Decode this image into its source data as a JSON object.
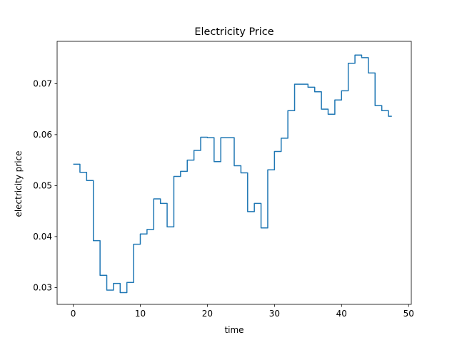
{
  "chart_data": {
    "type": "line",
    "title": "Electricity Price",
    "xlabel": "time",
    "ylabel": "electricity price",
    "xlim": [
      -2.4,
      50.4
    ],
    "ylim": [
      0.0267,
      0.0783
    ],
    "x_ticks": [
      0,
      10,
      20,
      30,
      40,
      50
    ],
    "x_tick_labels": [
      "0",
      "10",
      "20",
      "30",
      "40",
      "50"
    ],
    "y_ticks": [
      0.03,
      0.04,
      0.05,
      0.06,
      0.07
    ],
    "y_tick_labels": [
      "0.03",
      "0.04",
      "0.05",
      "0.06",
      "0.07"
    ],
    "grid": false,
    "step": "post",
    "series": [
      {
        "color": "#1f77b4",
        "x": [
          0,
          0.5,
          1,
          1.5,
          2,
          2.5,
          3,
          3.5,
          4,
          4.5,
          5,
          5.5,
          6,
          6.5,
          7,
          7.5,
          8,
          8.5,
          9,
          9.5,
          10,
          10.5,
          11,
          11.5,
          12,
          12.5,
          13,
          13.5,
          14,
          14.5,
          15,
          15.5,
          16,
          16.5,
          17,
          17.5,
          18,
          18.5,
          19,
          19.5,
          20,
          20.5,
          21,
          21.5,
          22,
          22.5,
          23,
          23.5,
          24,
          24.5,
          25,
          25.5,
          26,
          26.5,
          27,
          27.5,
          28,
          28.5,
          29,
          29.5,
          30,
          30.5,
          31,
          31.5,
          32,
          32.5,
          33,
          33.5,
          34,
          34.5,
          35,
          35.5,
          36,
          36.5,
          37,
          37.5,
          38,
          38.5,
          39,
          39.5,
          40,
          40.5,
          41,
          41.5,
          42,
          42.5,
          43,
          43.5,
          44,
          44.5,
          45,
          45.5,
          46,
          46.5,
          47,
          47.5
        ],
        "y": [
          0.0542,
          0.0542,
          0.0526,
          0.0526,
          0.051,
          0.051,
          0.0392,
          0.0392,
          0.0324,
          0.0324,
          0.0295,
          0.0295,
          0.0308,
          0.0308,
          0.029,
          0.029,
          0.031,
          0.031,
          0.0385,
          0.0385,
          0.0405,
          0.0405,
          0.0414,
          0.0414,
          0.0474,
          0.0474,
          0.0465,
          0.0465,
          0.0419,
          0.0419,
          0.0518,
          0.0518,
          0.0528,
          0.0528,
          0.055,
          0.055,
          0.0569,
          0.0569,
          0.0595,
          0.0595,
          0.0594,
          0.0594,
          0.0547,
          0.0547,
          0.0594,
          0.0594,
          0.0594,
          0.0594,
          0.0539,
          0.0539,
          0.0525,
          0.0525,
          0.0449,
          0.0449,
          0.0465,
          0.0465,
          0.0417,
          0.0417,
          0.0531,
          0.0531,
          0.0567,
          0.0567,
          0.0593,
          0.0593,
          0.0647,
          0.0647,
          0.0699,
          0.0699,
          0.0699,
          0.0699,
          0.0693,
          0.0693,
          0.0684,
          0.0684,
          0.065,
          0.065,
          0.064,
          0.064,
          0.0668,
          0.0668,
          0.0686,
          0.0686,
          0.074,
          0.074,
          0.0756,
          0.0756,
          0.0751,
          0.0751,
          0.0721,
          0.0721,
          0.0657,
          0.0657,
          0.0647,
          0.0647,
          0.0636,
          0.0636
        ]
      }
    ]
  }
}
